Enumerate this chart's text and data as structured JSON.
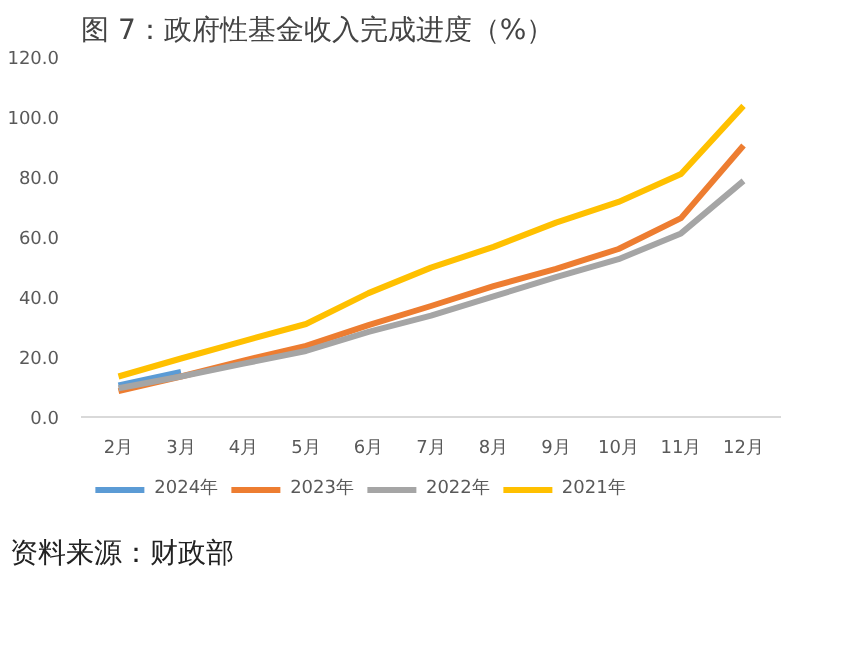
{
  "chart_data": {
    "type": "line",
    "title": "图 7：政府性基金收入完成进度（%）",
    "annotations": [
      "资料来源：财政部"
    ],
    "categories": [
      "2月",
      "3月",
      "4月",
      "5月",
      "6月",
      "7月",
      "8月",
      "9月",
      "10月",
      "11月",
      "12月"
    ],
    "ylim": [
      0,
      120
    ],
    "yticks": [
      {
        "value": 0,
        "label": "0.0"
      },
      {
        "value": 20,
        "label": "20.0"
      },
      {
        "value": 40,
        "label": "40.0"
      },
      {
        "value": 60,
        "label": "60.0"
      },
      {
        "value": 80,
        "label": "80.0"
      },
      {
        "value": 100,
        "label": "100.0"
      },
      {
        "value": 120,
        "label": "120.0"
      }
    ],
    "grid": false,
    "legend": "bottom",
    "marker": "none",
    "line_style": "solid",
    "series": [
      {
        "name": "2024年",
        "color": "#5b9bd5",
        "values": [
          10.5,
          15,
          null,
          null,
          null,
          null,
          null,
          null,
          null,
          null,
          null
        ]
      },
      {
        "name": "2023年",
        "color": "#ed7d31",
        "values": [
          8.6,
          13.5,
          18.8,
          23.7,
          30.6,
          37,
          43.6,
          49.4,
          56,
          66.3,
          90.5
        ]
      },
      {
        "name": "2022年",
        "color": "#a5a5a5",
        "values": [
          9.6,
          13.5,
          17.8,
          22,
          28.4,
          33.8,
          40.2,
          46.6,
          52.6,
          61.2,
          78.7
        ]
      },
      {
        "name": "2021年",
        "color": "#ffc000",
        "values": [
          13.5,
          19.5,
          25.3,
          31,
          41.3,
          49.8,
          56.7,
          64.8,
          71.7,
          81,
          103.7
        ]
      }
    ]
  }
}
